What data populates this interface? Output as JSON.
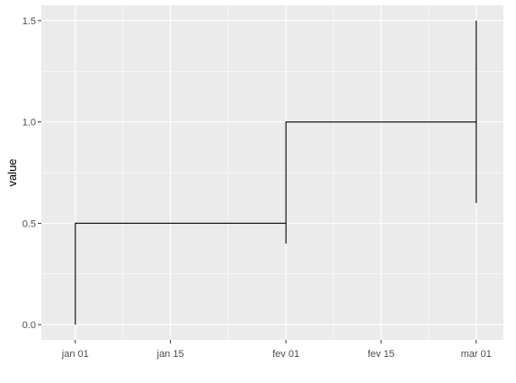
{
  "chart_data": {
    "type": "line",
    "title": "",
    "xlabel": "",
    "ylabel": "value",
    "x_ticks": [
      "jan 01",
      "jan 15",
      "fev 01",
      "fev 15",
      "mar 01"
    ],
    "x_tick_dates": [
      "2023-01-01",
      "2023-01-15",
      "2023-02-01",
      "2023-02-15",
      "2023-03-01"
    ],
    "y_ticks": [
      "0.0",
      "0.5",
      "1.0",
      "1.5"
    ],
    "y_tick_values": [
      0,
      0.5,
      1.0,
      1.5
    ],
    "xlim": [
      "2022-12-27",
      "2023-03-05"
    ],
    "ylim": [
      -0.075,
      1.575
    ],
    "grid": true,
    "background": "#ebebeb",
    "grid_color": "#ffffff",
    "line_color": "#000000",
    "series": [
      {
        "style": "step",
        "points": [
          {
            "x": "2023-01-01",
            "y": 0.0
          },
          {
            "x": "2023-01-01",
            "y": 0.5
          },
          {
            "x": "2023-02-01",
            "y": 0.5
          },
          {
            "x": "2023-02-01",
            "y": 1.0
          },
          {
            "x": "2023-03-01",
            "y": 1.0
          },
          {
            "x": "2023-03-01",
            "y": 1.5
          }
        ]
      }
    ],
    "segments": [
      {
        "x": "2023-02-01",
        "y_from": 0.4,
        "y_to": 0.5
      },
      {
        "x": "2023-03-01",
        "y_from": 0.6,
        "y_to": 1.0
      }
    ]
  }
}
